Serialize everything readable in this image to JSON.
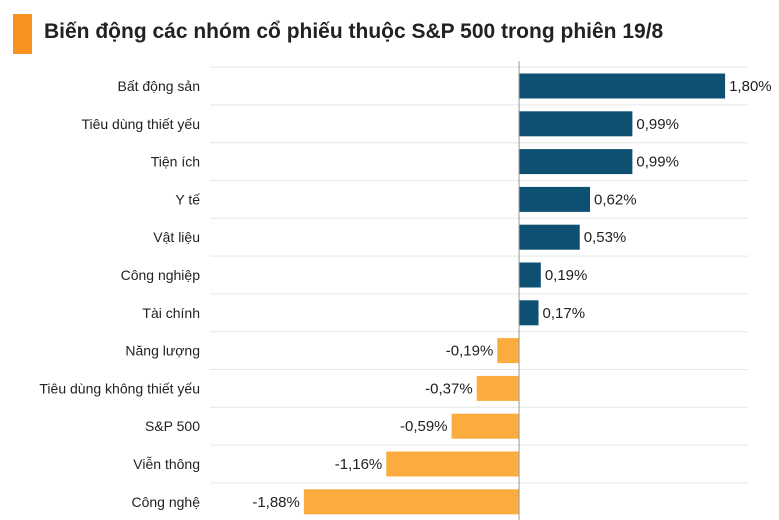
{
  "title": "Biến động các nhóm cổ phiếu thuộc S&P 500 trong phiên 19/8",
  "colors": {
    "accent": "#f7931e",
    "positive": "#0e5072",
    "negative": "#fbac3e",
    "grid": "#e6e6e6",
    "axis": "#999999"
  },
  "chart_data": {
    "type": "bar",
    "orientation": "horizontal",
    "title": "Biến động các nhóm cổ phiếu thuộc S&P 500 trong phiên 19/8",
    "xlabel": "",
    "ylabel": "",
    "unit": "%",
    "categories": [
      "Bất động sản",
      "Tiêu dùng thiết yếu",
      "Tiện ích",
      "Y tế",
      "Vật liệu",
      "Công nghiệp",
      "Tài chính",
      "Năng lượng",
      "Tiêu dùng không thiết yếu",
      "S&P 500",
      "Viễn thông",
      "Công nghệ"
    ],
    "values": [
      1.8,
      0.99,
      0.99,
      0.62,
      0.53,
      0.19,
      0.17,
      -0.19,
      -0.37,
      -0.59,
      -1.16,
      -1.88
    ],
    "value_labels": [
      "1,80%",
      "0,99%",
      "0,99%",
      "0,62%",
      "0,53%",
      "0,19%",
      "0,17%",
      "-0,19%",
      "-0,37%",
      "-0,59%",
      "-1,16%",
      "-1,88%"
    ],
    "xlim": [
      -2.7,
      2.0
    ],
    "grid": true,
    "legend": "none"
  }
}
